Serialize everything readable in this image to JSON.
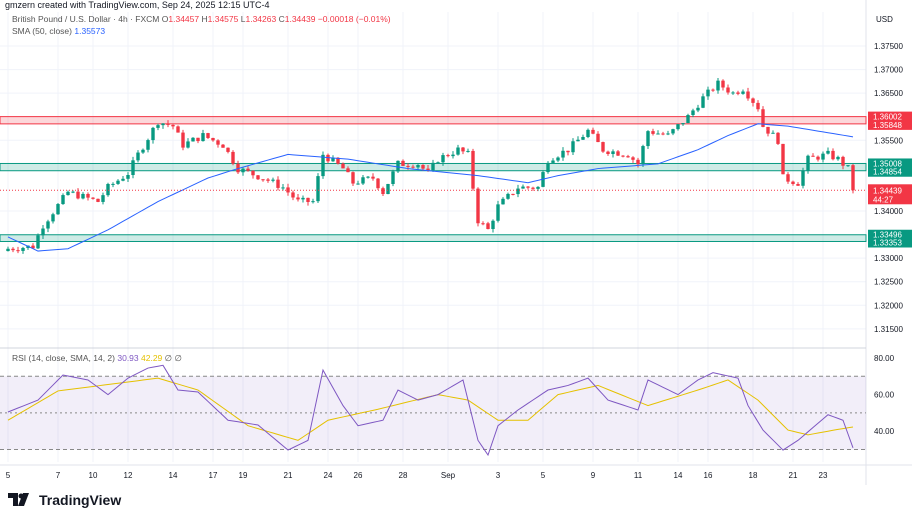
{
  "credit": "gmzern created with TradingView.com, Sep 24, 2025 12:15 UTC-4",
  "legend": {
    "symbol": "British Pound / U.S. Dollar · 4h · FXCM",
    "o_label": "O",
    "o": "1.34457",
    "h_label": "H",
    "h": "1.34575",
    "l_label": "L",
    "l": "1.34263",
    "c_label": "C",
    "c": "1.34439",
    "change": "−0.00018 (−0.01%)",
    "sma_label": "SMA (50, close)",
    "sma_value": "1.35573"
  },
  "rsi_legend": {
    "label": "RSI (14, close, SMA, 14, 2)",
    "rsi": "30.93",
    "sma": "42.29",
    "extra1": "∅",
    "extra2": "∅"
  },
  "currency": "USD",
  "logo": "TradingView",
  "chart_data": [
    {
      "type": "candlestick",
      "title": "British Pound / U.S. Dollar · 4h · FXCM",
      "ylim": [
        1.31,
        1.378
      ],
      "price_ticks": [
        "1.37500",
        "1.37000",
        "1.36500",
        "1.35500",
        "1.34000",
        "1.33000",
        "1.32500",
        "1.32000",
        "1.31500"
      ],
      "x_ticks": [
        {
          "bar": 0,
          "label": "5"
        },
        {
          "bar": 10,
          "label": "7"
        },
        {
          "bar": 17,
          "label": "10"
        },
        {
          "bar": 24,
          "label": "12"
        },
        {
          "bar": 33,
          "label": "14"
        },
        {
          "bar": 41,
          "label": "17"
        },
        {
          "bar": 47,
          "label": "19"
        },
        {
          "bar": 56,
          "label": "21"
        },
        {
          "bar": 64,
          "label": "24"
        },
        {
          "bar": 70,
          "label": "26"
        },
        {
          "bar": 79,
          "label": "28"
        },
        {
          "bar": 88,
          "label": "Sep"
        },
        {
          "bar": 98,
          "label": "3"
        },
        {
          "bar": 107,
          "label": "5"
        },
        {
          "bar": 117,
          "label": "9"
        },
        {
          "bar": 126,
          "label": "11"
        },
        {
          "bar": 134,
          "label": "14"
        },
        {
          "bar": 140,
          "label": "16"
        },
        {
          "bar": 149,
          "label": "18"
        },
        {
          "bar": 157,
          "label": "21"
        },
        {
          "bar": 163,
          "label": "23"
        }
      ],
      "close_path": [
        [
          0,
          1.332
        ],
        [
          5,
          1.3325
        ],
        [
          7,
          1.337
        ],
        [
          12,
          1.344
        ],
        [
          18,
          1.342
        ],
        [
          20,
          1.345
        ],
        [
          24,
          1.348
        ],
        [
          26,
          1.352
        ],
        [
          30,
          1.359
        ],
        [
          33,
          1.358
        ],
        [
          35,
          1.354
        ],
        [
          39,
          1.356
        ],
        [
          43,
          1.354
        ],
        [
          46,
          1.349
        ],
        [
          51,
          1.347
        ],
        [
          55,
          1.345
        ],
        [
          58,
          1.342
        ],
        [
          61,
          1.342
        ],
        [
          63,
          1.352
        ],
        [
          67,
          1.349
        ],
        [
          69,
          1.346
        ],
        [
          73,
          1.347
        ],
        [
          75,
          1.344
        ],
        [
          78,
          1.35
        ],
        [
          82,
          1.35
        ],
        [
          84,
          1.348
        ],
        [
          86,
          1.351
        ],
        [
          90,
          1.353
        ],
        [
          92,
          1.352
        ],
        [
          94,
          1.338
        ],
        [
          96,
          1.336
        ],
        [
          98,
          1.341
        ],
        [
          102,
          1.345
        ],
        [
          106,
          1.345
        ],
        [
          108,
          1.351
        ],
        [
          112,
          1.353
        ],
        [
          116,
          1.357
        ],
        [
          119,
          1.353
        ],
        [
          124,
          1.352
        ],
        [
          126,
          1.35
        ],
        [
          128,
          1.357
        ],
        [
          132,
          1.356
        ],
        [
          136,
          1.36
        ],
        [
          139,
          1.364
        ],
        [
          142,
          1.367
        ],
        [
          145,
          1.365
        ],
        [
          147,
          1.366
        ],
        [
          150,
          1.362
        ],
        [
          151,
          1.358
        ],
        [
          154,
          1.355
        ],
        [
          155,
          1.347
        ],
        [
          158,
          1.346
        ],
        [
          160,
          1.351
        ],
        [
          164,
          1.352
        ],
        [
          166,
          1.351
        ],
        [
          168,
          1.349
        ],
        [
          169,
          1.34439
        ]
      ],
      "sma50": [
        [
          0,
          1.3345
        ],
        [
          6,
          1.3315
        ],
        [
          12,
          1.332
        ],
        [
          20,
          1.336
        ],
        [
          30,
          1.342
        ],
        [
          40,
          1.347
        ],
        [
          46,
          1.349
        ],
        [
          56,
          1.352
        ],
        [
          68,
          1.351
        ],
        [
          80,
          1.349
        ],
        [
          94,
          1.3475
        ],
        [
          104,
          1.346
        ],
        [
          110,
          1.3475
        ],
        [
          118,
          1.349
        ],
        [
          130,
          1.35
        ],
        [
          138,
          1.353
        ],
        [
          144,
          1.356
        ],
        [
          150,
          1.3585
        ],
        [
          156,
          1.358
        ],
        [
          169,
          1.35573
        ]
      ],
      "zones": [
        {
          "top": 1.36002,
          "bottom": 1.35848,
          "color": "#f23645",
          "top_label": "1.36002",
          "bottom_label": "1.35848"
        },
        {
          "top": 1.35008,
          "bottom": 1.34854,
          "color": "#089981",
          "top_label": "1.35008",
          "bottom_label": "1.34854"
        },
        {
          "top": 1.33496,
          "bottom": 1.33353,
          "color": "#089981",
          "top_label": "1.33496",
          "bottom_label": "1.33353"
        }
      ],
      "last_price": {
        "value": 1.34439,
        "label": "1.34439",
        "countdown": "44:27"
      },
      "colors": {
        "up": "#089981",
        "down": "#f23645",
        "sma": "#2962ff"
      }
    },
    {
      "type": "line",
      "title": "RSI (14, close, SMA, 14, 2)",
      "ylim": [
        20,
        85
      ],
      "bands": [
        70,
        50,
        30
      ],
      "y_ticks": [
        "80.00",
        "60.00",
        "40.00"
      ],
      "rsi": [
        [
          0,
          50.5
        ],
        [
          6,
          57
        ],
        [
          11,
          70.7
        ],
        [
          16,
          68
        ],
        [
          20,
          60
        ],
        [
          24,
          69
        ],
        [
          28,
          74.5
        ],
        [
          31,
          76
        ],
        [
          34,
          62.5
        ],
        [
          38,
          61.4
        ],
        [
          44,
          46
        ],
        [
          50,
          43.4
        ],
        [
          56,
          29.7
        ],
        [
          60,
          35
        ],
        [
          63,
          73.4
        ],
        [
          67,
          54
        ],
        [
          70,
          43
        ],
        [
          75,
          46
        ],
        [
          78,
          62.5
        ],
        [
          82,
          57
        ],
        [
          86,
          60
        ],
        [
          91,
          68
        ],
        [
          94,
          35
        ],
        [
          96,
          27
        ],
        [
          98,
          43
        ],
        [
          102,
          51.6
        ],
        [
          108,
          62.5
        ],
        [
          112,
          65
        ],
        [
          116,
          69
        ],
        [
          120,
          57
        ],
        [
          126,
          51.6
        ],
        [
          128,
          68
        ],
        [
          134,
          60
        ],
        [
          138,
          68
        ],
        [
          141,
          72
        ],
        [
          146,
          69
        ],
        [
          148,
          54
        ],
        [
          151,
          40.6
        ],
        [
          155,
          29.7
        ],
        [
          158,
          35
        ],
        [
          164,
          49
        ],
        [
          167,
          46
        ],
        [
          169,
          30.93
        ]
      ],
      "rsi_sma": [
        [
          0,
          46
        ],
        [
          10,
          62
        ],
        [
          30,
          69
        ],
        [
          38,
          62.5
        ],
        [
          48,
          43
        ],
        [
          58,
          35
        ],
        [
          64,
          46
        ],
        [
          74,
          52
        ],
        [
          86,
          60
        ],
        [
          92,
          57
        ],
        [
          98,
          46
        ],
        [
          104,
          46
        ],
        [
          110,
          60
        ],
        [
          118,
          65
        ],
        [
          128,
          54
        ],
        [
          138,
          62.5
        ],
        [
          144,
          68
        ],
        [
          150,
          57
        ],
        [
          156,
          40.6
        ],
        [
          160,
          38
        ],
        [
          166,
          41
        ],
        [
          169,
          42.29
        ]
      ],
      "colors": {
        "rsi": "#7e57c2",
        "sma": "#e5c100"
      }
    }
  ]
}
